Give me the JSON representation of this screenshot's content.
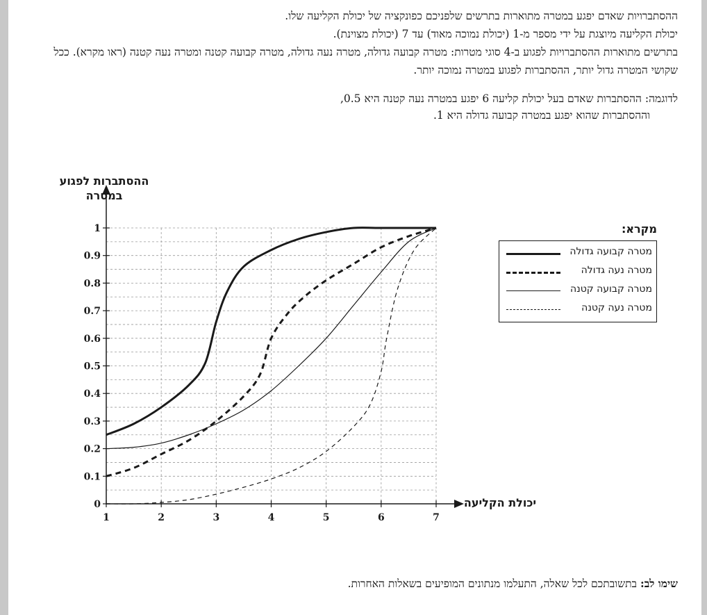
{
  "intro": {
    "line1": "ההסתברויות שאדם יפגע במטרה מתוארות בתרשים שלפניכם כפונקציה של יכולת הקליעה שלו.",
    "line2": "יכולת הקליעה מיוצגת על ידי מספר מ-1 (יכולת נמוכה מאוד) עד 7 (יכולת מצוינת).",
    "line3": "בתרשים מתוארות ההסתברויות לפגוע ב-4 סוגי מטרות: מטרה קבועה גדולה, מטרה נעה גדולה, מטרה קבועה קטנה ומטרה נעה קטנה (ראו מקרא).  ככל שקושי המטרה גדול יותר, ההסתברות לפגוע במטרה נמוכה יותר."
  },
  "example": {
    "line1": "לדוגמה: ההסתברות שאדם בעל יכולת קליעה 6 יפגע במטרה נעה קטנה היא 0.5,",
    "line2": "וההסתברות שהוא יפגע במטרה קבועה גדולה היא 1."
  },
  "note": {
    "label": "שימו לב:",
    "text": " בתשובתכם לכל שאלה, התעלמו מנתונים המופיעים בשאלות האחרות."
  },
  "chart_data": {
    "type": "line",
    "ylabel_line1": "ההסתברות לפגוע",
    "ylabel_line2": "במטרה",
    "xlabel": "יכולת הקליעה",
    "xlim": [
      1,
      7
    ],
    "ylim": [
      0,
      1
    ],
    "x_ticks": [
      "1",
      "2",
      "3",
      "4",
      "5",
      "6",
      "7"
    ],
    "y_ticks": [
      "0",
      "0.1",
      "0.2",
      "0.3",
      "0.4",
      "0.5",
      "0.6",
      "0.7",
      "0.8",
      "0.9",
      "1"
    ],
    "grid": true,
    "legend_title": "מקרא:",
    "legend_position": "right",
    "series": [
      {
        "name": "מטרה קבועה גדולה",
        "style": "thick-solid",
        "points": [
          [
            1,
            0.25
          ],
          [
            1.5,
            0.29
          ],
          [
            2,
            0.35
          ],
          [
            2.5,
            0.43
          ],
          [
            2.8,
            0.51
          ],
          [
            3,
            0.66
          ],
          [
            3.2,
            0.77
          ],
          [
            3.5,
            0.86
          ],
          [
            4,
            0.92
          ],
          [
            4.5,
            0.96
          ],
          [
            5,
            0.985
          ],
          [
            5.5,
            1.0
          ],
          [
            6,
            1.0
          ],
          [
            7,
            1.0
          ]
        ]
      },
      {
        "name": "מטרה נעה גדולה",
        "style": "thick-dashed",
        "points": [
          [
            1,
            0.1
          ],
          [
            1.5,
            0.13
          ],
          [
            2,
            0.18
          ],
          [
            2.5,
            0.23
          ],
          [
            3,
            0.3
          ],
          [
            3.5,
            0.39
          ],
          [
            3.8,
            0.47
          ],
          [
            4,
            0.6
          ],
          [
            4.3,
            0.69
          ],
          [
            4.6,
            0.75
          ],
          [
            5,
            0.81
          ],
          [
            5.5,
            0.87
          ],
          [
            6,
            0.93
          ],
          [
            6.5,
            0.97
          ],
          [
            7,
            1.0
          ]
        ]
      },
      {
        "name": "מטרה קבועה קטנה",
        "style": "thin-solid",
        "points": [
          [
            1,
            0.2
          ],
          [
            1.5,
            0.205
          ],
          [
            2,
            0.22
          ],
          [
            2.5,
            0.25
          ],
          [
            3,
            0.29
          ],
          [
            3.5,
            0.34
          ],
          [
            4,
            0.41
          ],
          [
            4.5,
            0.5
          ],
          [
            5,
            0.6
          ],
          [
            5.5,
            0.72
          ],
          [
            6,
            0.84
          ],
          [
            6.5,
            0.95
          ],
          [
            7,
            1.0
          ]
        ]
      },
      {
        "name": "מטרה נעה קטנה",
        "style": "thin-dashed",
        "points": [
          [
            1,
            0.0
          ],
          [
            1.5,
            0.0
          ],
          [
            2,
            0.005
          ],
          [
            2.5,
            0.015
          ],
          [
            3,
            0.035
          ],
          [
            3.5,
            0.06
          ],
          [
            4,
            0.09
          ],
          [
            4.5,
            0.13
          ],
          [
            5,
            0.19
          ],
          [
            5.5,
            0.28
          ],
          [
            5.8,
            0.36
          ],
          [
            6,
            0.48
          ],
          [
            6.1,
            0.6
          ],
          [
            6.3,
            0.78
          ],
          [
            6.6,
            0.92
          ],
          [
            7,
            1.0
          ]
        ]
      }
    ]
  }
}
